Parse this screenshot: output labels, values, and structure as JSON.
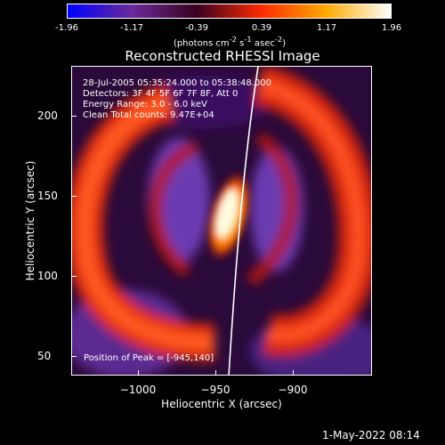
{
  "colorbar": {
    "ticks": [
      "-1.96",
      "-1.17",
      "-0.39",
      "0.39",
      "1.17",
      "1.96"
    ],
    "unit_html": "(photons cm<sup>-2</sup> s<sup>-1</sup> asec<sup>-2</sup>)",
    "colors": [
      "#0000ff",
      "#6a2a9a",
      "#3a0020",
      "#ff2a00",
      "#ffaa00",
      "#ffffff"
    ]
  },
  "title": "Reconstructed RHESSI Image",
  "info": {
    "line1": "28-Jul-2005 05:35:24.000 to 05:38:48.000",
    "line2": "Detectors: 3F 4F 5F 6F 7F 8F, Att 0",
    "line3": "Energy Range: 3.0 - 6.0 keV",
    "line4": "Clean     Total counts: 9.47E+04"
  },
  "peak": "Position of Peak = [-945,140]",
  "axes": {
    "xlabel": "Heliocentric X (arcsec)",
    "ylabel": "Heliocentric Y (arcsec)",
    "xticks": [
      "−1000",
      "−950",
      "−900"
    ],
    "yticks": [
      "200",
      "150",
      "100",
      "50"
    ]
  },
  "footer_date": "1-May-2022 08:14"
}
